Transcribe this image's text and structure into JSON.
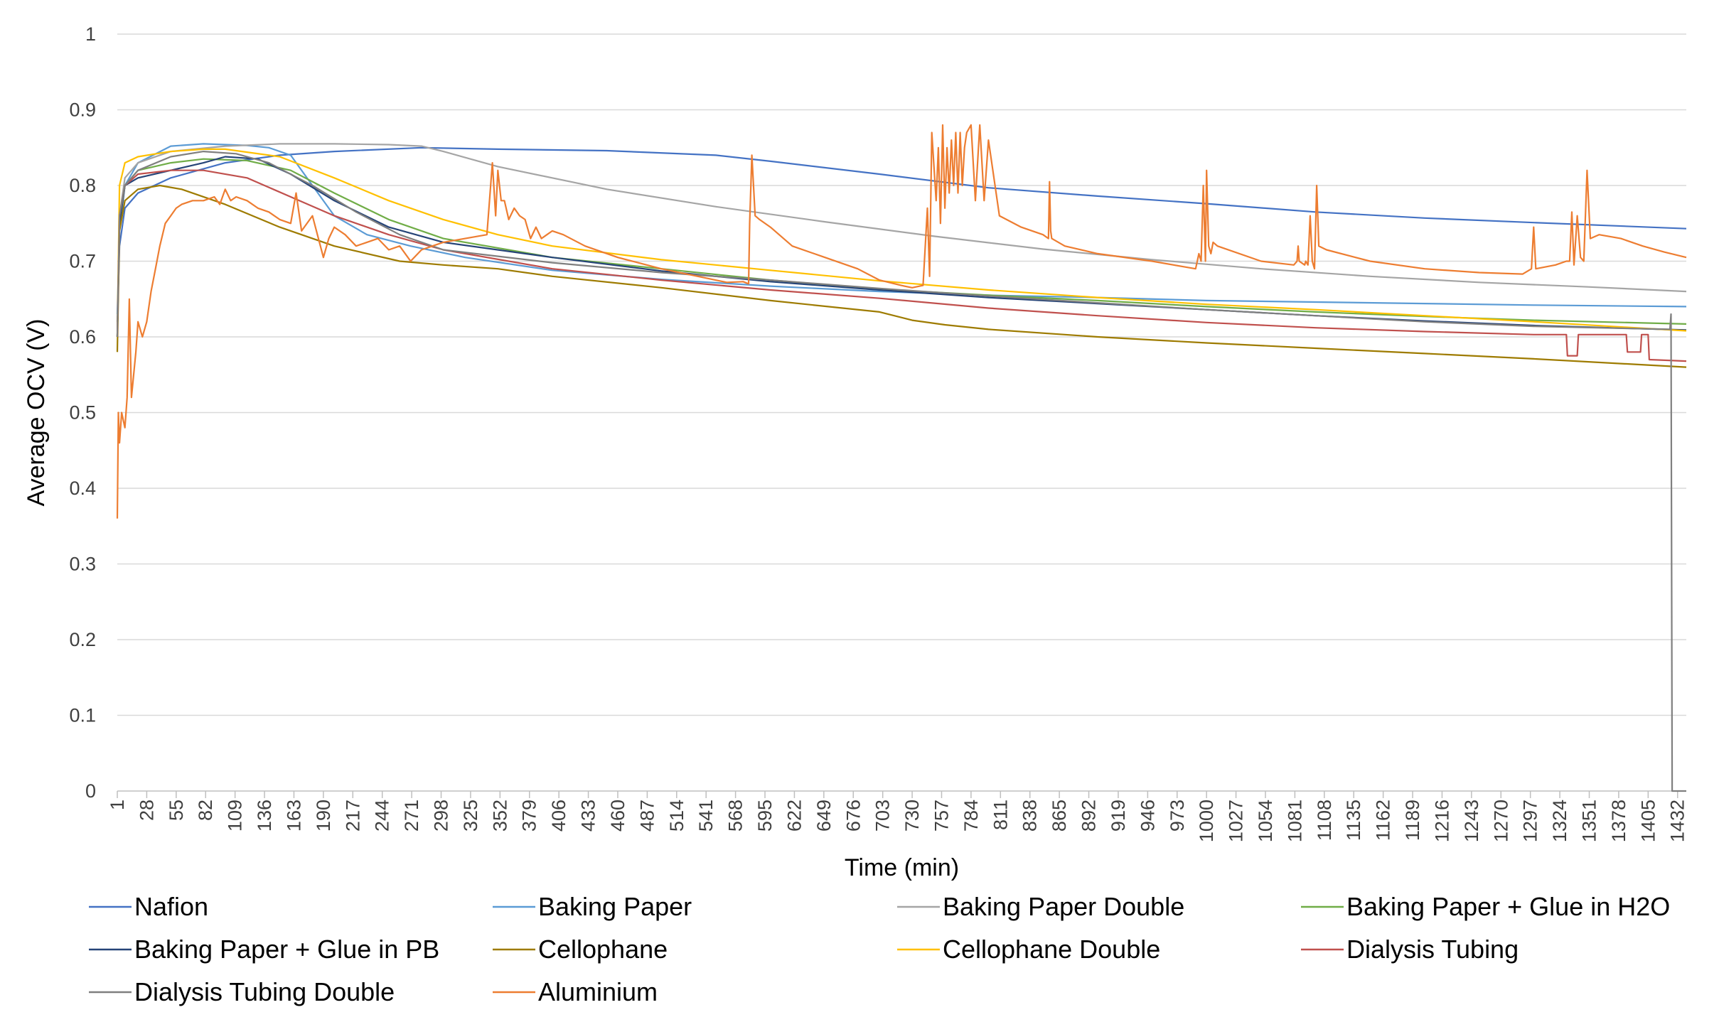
{
  "chart_data": {
    "type": "line",
    "title": "",
    "xlabel": "Time (min)",
    "ylabel": "Average OCV (V)",
    "xlim": [
      1,
      1440
    ],
    "ylim": [
      0,
      1
    ],
    "grid": "horizontal",
    "legend_position": "bottom",
    "y_ticks": [
      "0",
      "0.1",
      "0.2",
      "0.3",
      "0.4",
      "0.5",
      "0.6",
      "0.7",
      "0.8",
      "0.9",
      "1"
    ],
    "x_ticks": [
      "1",
      "28",
      "55",
      "82",
      "109",
      "136",
      "163",
      "190",
      "217",
      "244",
      "271",
      "298",
      "325",
      "352",
      "379",
      "406",
      "433",
      "460",
      "487",
      "514",
      "541",
      "568",
      "595",
      "622",
      "649",
      "676",
      "703",
      "730",
      "757",
      "784",
      "811",
      "838",
      "865",
      "892",
      "919",
      "946",
      "973",
      "1000",
      "1027",
      "1054",
      "1081",
      "1108",
      "1135",
      "1162",
      "1189",
      "1216",
      "1243",
      "1270",
      "1297",
      "1324",
      "1351",
      "1378",
      "1405",
      "1432"
    ],
    "series": [
      {
        "name": "Nafion",
        "color": "#4472C4",
        "x": [
          1,
          3,
          8,
          20,
          50,
          100,
          150,
          200,
          280,
          350,
          450,
          550,
          600,
          700,
          800,
          900,
          1000,
          1100,
          1200,
          1300,
          1440
        ],
        "y": [
          0.62,
          0.72,
          0.77,
          0.79,
          0.81,
          0.83,
          0.84,
          0.845,
          0.85,
          0.848,
          0.846,
          0.84,
          0.832,
          0.815,
          0.797,
          0.786,
          0.776,
          0.765,
          0.757,
          0.751,
          0.743
        ]
      },
      {
        "name": "Baking Paper",
        "color": "#5B9BD5",
        "x": [
          1,
          3,
          8,
          20,
          50,
          80,
          120,
          140,
          160,
          180,
          200,
          230,
          270,
          320,
          400,
          500,
          600,
          700,
          800,
          900,
          1000,
          1100,
          1200,
          1300,
          1440
        ],
        "y": [
          0.63,
          0.74,
          0.8,
          0.83,
          0.852,
          0.855,
          0.853,
          0.85,
          0.84,
          0.8,
          0.76,
          0.735,
          0.72,
          0.705,
          0.688,
          0.676,
          0.667,
          0.66,
          0.655,
          0.652,
          0.648,
          0.646,
          0.644,
          0.642,
          0.64
        ]
      },
      {
        "name": "Baking Paper Double",
        "color": "#A5A5A5",
        "x": [
          1,
          3,
          8,
          20,
          50,
          100,
          150,
          200,
          250,
          280,
          300,
          350,
          450,
          550,
          650,
          750,
          850,
          950,
          1050,
          1150,
          1250,
          1350,
          1440
        ],
        "y": [
          0.6,
          0.76,
          0.81,
          0.83,
          0.845,
          0.852,
          0.855,
          0.855,
          0.854,
          0.852,
          0.845,
          0.825,
          0.795,
          0.772,
          0.752,
          0.733,
          0.716,
          0.702,
          0.69,
          0.68,
          0.672,
          0.666,
          0.66
        ]
      },
      {
        "name": "Baking Paper + Glue in H2O",
        "color": "#70AD47",
        "x": [
          1,
          3,
          8,
          20,
          50,
          80,
          120,
          160,
          200,
          250,
          300,
          400,
          500,
          600,
          700,
          800,
          900,
          1000,
          1100,
          1200,
          1300,
          1440
        ],
        "y": [
          0.6,
          0.75,
          0.8,
          0.82,
          0.83,
          0.835,
          0.833,
          0.82,
          0.79,
          0.755,
          0.73,
          0.705,
          0.69,
          0.675,
          0.663,
          0.655,
          0.648,
          0.64,
          0.633,
          0.627,
          0.622,
          0.617
        ]
      },
      {
        "name": "Baking Paper + Glue in PB",
        "color": "#264478",
        "x": [
          1,
          3,
          8,
          20,
          50,
          80,
          100,
          130,
          160,
          200,
          250,
          300,
          400,
          500,
          600,
          700,
          800,
          900,
          1000,
          1100,
          1200,
          1300,
          1440
        ],
        "y": [
          0.6,
          0.75,
          0.8,
          0.81,
          0.82,
          0.83,
          0.838,
          0.835,
          0.815,
          0.78,
          0.745,
          0.725,
          0.705,
          0.687,
          0.673,
          0.662,
          0.652,
          0.644,
          0.636,
          0.628,
          0.621,
          0.615,
          0.609
        ]
      },
      {
        "name": "Cellophane",
        "color": "#9E7B00",
        "x": [
          1,
          3,
          8,
          20,
          40,
          60,
          100,
          150,
          200,
          260,
          300,
          350,
          400,
          500,
          600,
          700,
          730,
          760,
          800,
          900,
          1000,
          1100,
          1200,
          1300,
          1440
        ],
        "y": [
          0.58,
          0.74,
          0.78,
          0.795,
          0.8,
          0.795,
          0.775,
          0.745,
          0.72,
          0.7,
          0.695,
          0.69,
          0.68,
          0.665,
          0.648,
          0.633,
          0.622,
          0.616,
          0.61,
          0.6,
          0.592,
          0.585,
          0.578,
          0.571,
          0.56
        ]
      },
      {
        "name": "Cellophane Double",
        "color": "#FFC000",
        "x": [
          1,
          3,
          8,
          20,
          50,
          80,
          100,
          150,
          200,
          250,
          300,
          350,
          400,
          500,
          600,
          700,
          800,
          900,
          1000,
          1100,
          1200,
          1300,
          1440
        ],
        "y": [
          0.6,
          0.8,
          0.83,
          0.838,
          0.845,
          0.848,
          0.848,
          0.838,
          0.81,
          0.78,
          0.755,
          0.735,
          0.72,
          0.702,
          0.688,
          0.674,
          0.662,
          0.652,
          0.643,
          0.636,
          0.628,
          0.62,
          0.608
        ]
      },
      {
        "name": "Dialysis Tubing",
        "color": "#C0504D",
        "x": [
          1,
          3,
          8,
          20,
          50,
          80,
          120,
          160,
          200,
          250,
          300,
          400,
          500,
          600,
          700,
          800,
          900,
          1000,
          1100,
          1200,
          1300,
          1330,
          1331,
          1340,
          1341,
          1385,
          1386,
          1398,
          1399,
          1405,
          1406,
          1440
        ],
        "y": [
          0.6,
          0.76,
          0.8,
          0.815,
          0.82,
          0.82,
          0.81,
          0.785,
          0.76,
          0.735,
          0.715,
          0.69,
          0.675,
          0.662,
          0.651,
          0.638,
          0.628,
          0.619,
          0.612,
          0.607,
          0.603,
          0.603,
          0.575,
          0.575,
          0.603,
          0.603,
          0.58,
          0.58,
          0.603,
          0.603,
          0.57,
          0.568
        ]
      },
      {
        "name": "Dialysis Tubing Double",
        "color": "#7F7F7F",
        "x": [
          1,
          3,
          8,
          20,
          50,
          80,
          110,
          140,
          180,
          220,
          260,
          300,
          400,
          500,
          600,
          700,
          800,
          900,
          1000,
          1100,
          1200,
          1300,
          1425,
          1426,
          1427,
          1429,
          1440
        ],
        "y": [
          0.6,
          0.76,
          0.8,
          0.82,
          0.838,
          0.845,
          0.842,
          0.83,
          0.8,
          0.765,
          0.735,
          0.715,
          0.698,
          0.685,
          0.675,
          0.664,
          0.654,
          0.645,
          0.636,
          0.628,
          0.62,
          0.614,
          0.61,
          0.63,
          0.0,
          0.0,
          0.0
        ]
      },
      {
        "name": "Aluminium",
        "color": "#ED7D31",
        "x": [
          1,
          2,
          3,
          5,
          8,
          10,
          12,
          14,
          16,
          18,
          20,
          24,
          28,
          32,
          36,
          40,
          45,
          50,
          55,
          60,
          70,
          80,
          90,
          95,
          100,
          105,
          110,
          120,
          130,
          140,
          150,
          160,
          165,
          170,
          180,
          190,
          195,
          200,
          210,
          220,
          230,
          240,
          250,
          260,
          270,
          280,
          290,
          300,
          320,
          340,
          345,
          348,
          350,
          353,
          356,
          360,
          365,
          370,
          375,
          380,
          385,
          390,
          395,
          400,
          410,
          430,
          460,
          500,
          540,
          560,
          575,
          580,
          581,
          583,
          586,
          590,
          600,
          620,
          650,
          680,
          700,
          720,
          730,
          740,
          744,
          746,
          748,
          752,
          754,
          756,
          758,
          760,
          762,
          764,
          766,
          768,
          770,
          772,
          774,
          776,
          778,
          780,
          784,
          788,
          792,
          796,
          800,
          810,
          830,
          850,
          855,
          856,
          857,
          858,
          870,
          900,
          950,
          990,
          993,
          995,
          997,
          999,
          1000,
          1002,
          1004,
          1006,
          1010,
          1050,
          1080,
          1083,
          1084,
          1085,
          1090,
          1091,
          1093,
          1095,
          1097,
          1099,
          1101,
          1103,
          1110,
          1150,
          1200,
          1250,
          1290,
          1298,
          1300,
          1302,
          1320,
          1330,
          1333,
          1335,
          1337,
          1340,
          1343,
          1346,
          1349,
          1352,
          1360,
          1380,
          1400,
          1420,
          1440
        ],
        "y": [
          0.36,
          0.5,
          0.46,
          0.5,
          0.48,
          0.52,
          0.65,
          0.52,
          0.55,
          0.58,
          0.62,
          0.6,
          0.62,
          0.66,
          0.69,
          0.72,
          0.75,
          0.76,
          0.77,
          0.775,
          0.78,
          0.78,
          0.785,
          0.775,
          0.795,
          0.78,
          0.785,
          0.78,
          0.77,
          0.765,
          0.755,
          0.75,
          0.79,
          0.74,
          0.76,
          0.705,
          0.73,
          0.745,
          0.735,
          0.72,
          0.725,
          0.73,
          0.715,
          0.72,
          0.7,
          0.715,
          0.72,
          0.725,
          0.73,
          0.735,
          0.83,
          0.76,
          0.82,
          0.78,
          0.78,
          0.755,
          0.77,
          0.76,
          0.755,
          0.73,
          0.745,
          0.73,
          0.735,
          0.74,
          0.735,
          0.72,
          0.705,
          0.69,
          0.678,
          0.672,
          0.673,
          0.67,
          0.75,
          0.84,
          0.76,
          0.755,
          0.745,
          0.72,
          0.705,
          0.69,
          0.675,
          0.668,
          0.665,
          0.668,
          0.77,
          0.68,
          0.87,
          0.78,
          0.85,
          0.75,
          0.88,
          0.77,
          0.85,
          0.79,
          0.86,
          0.8,
          0.87,
          0.79,
          0.87,
          0.8,
          0.85,
          0.87,
          0.88,
          0.78,
          0.88,
          0.78,
          0.86,
          0.76,
          0.745,
          0.735,
          0.73,
          0.805,
          0.74,
          0.73,
          0.72,
          0.71,
          0.7,
          0.69,
          0.71,
          0.7,
          0.8,
          0.7,
          0.82,
          0.72,
          0.71,
          0.725,
          0.72,
          0.7,
          0.695,
          0.7,
          0.72,
          0.7,
          0.695,
          0.7,
          0.695,
          0.76,
          0.7,
          0.69,
          0.8,
          0.72,
          0.715,
          0.7,
          0.69,
          0.685,
          0.683,
          0.69,
          0.745,
          0.69,
          0.695,
          0.7,
          0.7,
          0.765,
          0.695,
          0.76,
          0.705,
          0.7,
          0.82,
          0.73,
          0.735,
          0.73,
          0.72,
          0.712,
          0.705
        ]
      }
    ]
  }
}
